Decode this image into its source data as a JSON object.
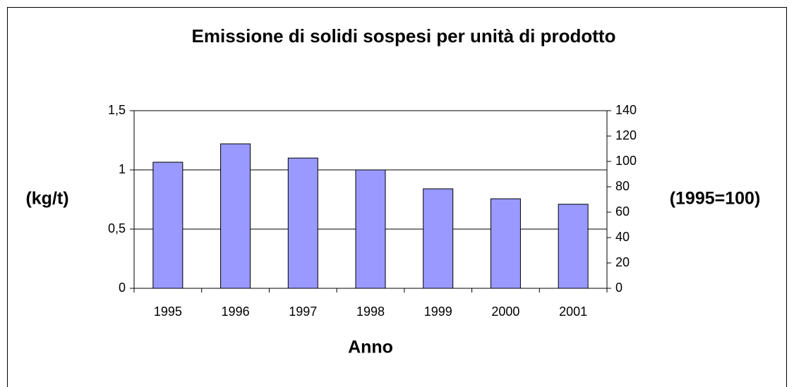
{
  "chart_data": {
    "type": "bar",
    "title": "Emissione di solidi sospesi per unità di prodotto",
    "categories": [
      "1995",
      "1996",
      "1997",
      "1998",
      "1999",
      "2000",
      "2001"
    ],
    "values": [
      1.065,
      1.22,
      1.1,
      1.0,
      0.84,
      0.756,
      0.71
    ],
    "color": "#9999ff",
    "ylim": [
      0,
      1.5
    ],
    "yticks": [
      0,
      {
        "value": 0.5,
        "label": "0,5"
      },
      1,
      {
        "value": 1.5,
        "label": "1,5"
      }
    ],
    "y2lim": [
      0,
      140
    ],
    "y2ticks": [
      0,
      20,
      40,
      60,
      80,
      100,
      120,
      140
    ],
    "ylabel": "(kg/t)",
    "y2label": "(1995=100)",
    "xlabel": "Anno",
    "grid": true
  }
}
